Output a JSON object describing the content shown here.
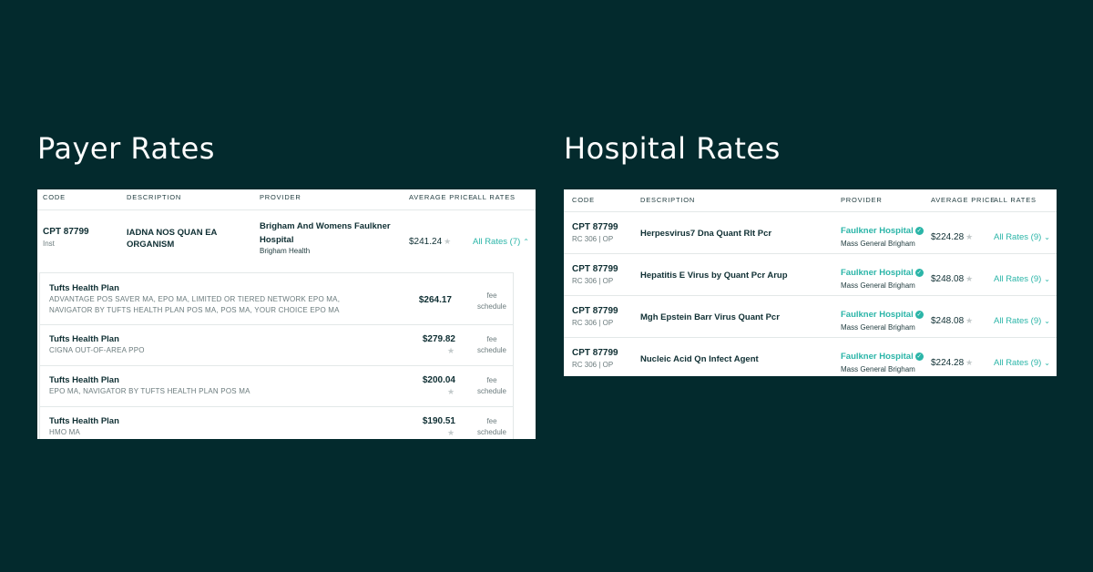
{
  "payer": {
    "title": "Payer Rates",
    "headers": {
      "code": "CODE",
      "description": "DESCRIPTION",
      "provider": "PROVIDER",
      "average_price": "AVERAGE PRICE",
      "all_rates": "ALL RATES"
    },
    "row": {
      "code": "CPT 87799",
      "code_sub": "Inst",
      "description_line1": "IADNA NOS QUAN EA",
      "description_line2": "ORGANISM",
      "provider_line1": "Brigham And Womens Faulkner",
      "provider_line2": "Hospital",
      "provider_system": "Brigham Health",
      "price": "$241.24",
      "rates_label": "All Rates (7)",
      "chevron": "chevron-up-icon"
    },
    "payers": [
      {
        "name": "Tufts Health Plan",
        "plans_line1": "ADVANTAGE POS SAVER MA, EPO MA, LIMITED OR TIERED NETWORK EPO MA,",
        "plans_line2": "NAVIGATOR BY TUFTS HEALTH PLAN POS MA, POS MA, YOUR CHOICE EPO MA",
        "price": "$264.17",
        "type_line1": "fee",
        "type_line2": "schedule"
      },
      {
        "name": "Tufts Health Plan",
        "plans_line1": "CIGNA OUT-OF-AREA PPO",
        "plans_line2": "",
        "price": "$279.82",
        "type_line1": "fee",
        "type_line2": "schedule"
      },
      {
        "name": "Tufts Health Plan",
        "plans_line1": "EPO MA, NAVIGATOR BY TUFTS HEALTH PLAN POS MA",
        "plans_line2": "",
        "price": "$200.04",
        "type_line1": "fee",
        "type_line2": "schedule"
      },
      {
        "name": "Tufts Health Plan",
        "plans_line1": "HMO MA",
        "plans_line2": "",
        "price": "$190.51",
        "type_line1": "fee",
        "type_line2": "schedule"
      }
    ]
  },
  "hospital": {
    "title": "Hospital Rates",
    "headers": {
      "code": "CODE",
      "description": "DESCRIPTION",
      "provider": "PROVIDER",
      "average_price": "AVERAGE PRICE",
      "all_rates": "ALL RATES"
    },
    "rows": [
      {
        "code": "CPT 87799",
        "code_sub": "RC 306 | OP",
        "description": "Herpesvirus7 Dna Quant Rlt Pcr",
        "provider": "Faulkner Hospital",
        "provider_system": "Mass General Brigham",
        "price": "$224.28",
        "rates_label": "All Rates (9)"
      },
      {
        "code": "CPT 87799",
        "code_sub": "RC 306 | OP",
        "description": "Hepatitis E Virus by Quant Pcr Arup",
        "provider": "Faulkner Hospital",
        "provider_system": "Mass General Brigham",
        "price": "$248.08",
        "rates_label": "All Rates (9)"
      },
      {
        "code": "CPT 87799",
        "code_sub": "RC 306 | OP",
        "description": "Mgh Epstein Barr Virus Quant Pcr",
        "provider": "Faulkner Hospital",
        "provider_system": "Mass General Brigham",
        "price": "$248.08",
        "rates_label": "All Rates (9)"
      },
      {
        "code": "CPT 87799",
        "code_sub": "RC 306 | OP",
        "description": "Nucleic Acid Qn Infect Agent",
        "provider": "Faulkner Hospital",
        "provider_system": "Mass General Brigham",
        "price": "$224.28",
        "rates_label": "All Rates (9)"
      }
    ]
  },
  "icons": {
    "star": "star-icon",
    "verified": "verified-check-icon",
    "chevron_down": "chevron-down-icon"
  },
  "colors": {
    "background": "#032a2d",
    "accent": "#2bb5a8",
    "text": "#0f2f33"
  }
}
